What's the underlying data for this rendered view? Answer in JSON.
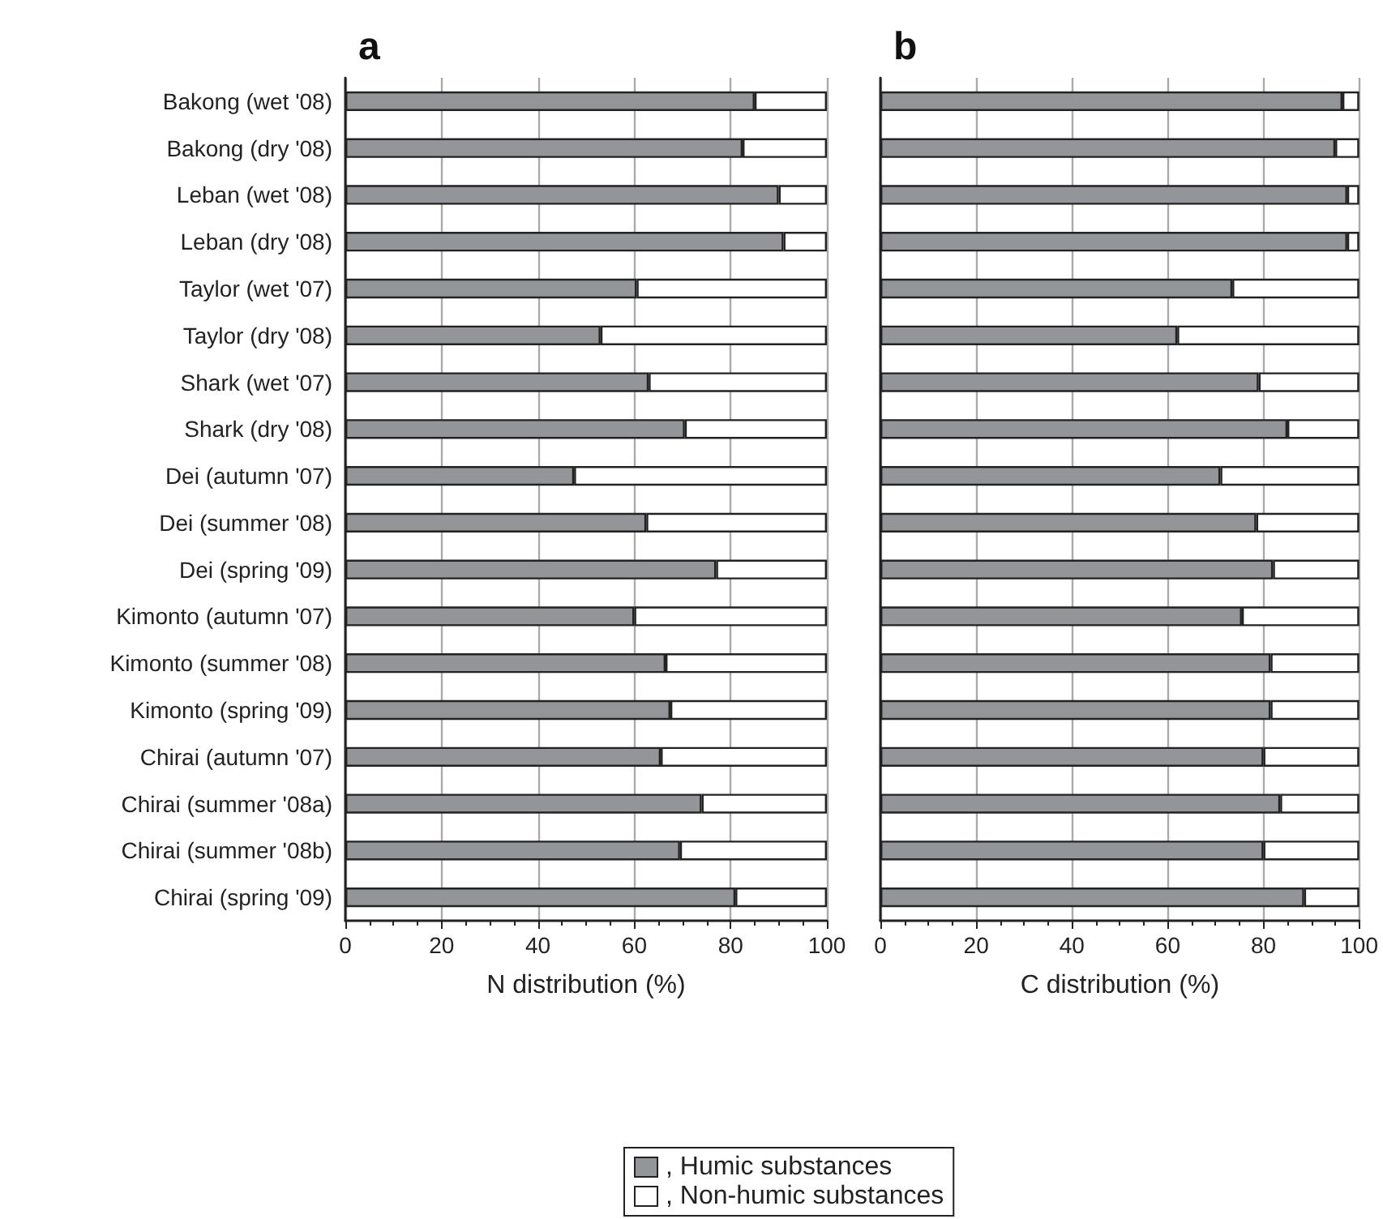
{
  "chart_data": [
    {
      "type": "bar",
      "title": "a",
      "orientation": "horizontal",
      "stacked": true,
      "xlabel": "N distribution (%)",
      "categories": [
        "Bakong (wet '08)",
        "Bakong (dry '08)",
        "Leban (wet '08)",
        "Leban (dry '08)",
        "Taylor (wet '07)",
        "Taylor (dry '08)",
        "Shark (wet '07)",
        "Shark (dry '08)",
        "Dei (autumn '07)",
        "Dei (summer '08)",
        "Dei (spring '09)",
        "Kimonto (autumn '07)",
        "Kimonto (summer '08)",
        "Kimonto (spring '09)",
        "Chirai (autumn '07)",
        "Chirai (summer '08a)",
        "Chirai (summer '08b)",
        "Chirai (spring '09)"
      ],
      "series": [
        {
          "name": ", Humic substances",
          "color": "#939598",
          "values": [
            85,
            82.5,
            90,
            91,
            60.5,
            53,
            63,
            70.5,
            47.5,
            62.5,
            77,
            60,
            66.5,
            67.5,
            65.5,
            74,
            69.5,
            81
          ]
        },
        {
          "name": ", Non-humic substances",
          "color": "#ffffff",
          "values": [
            15,
            17.5,
            10,
            9,
            39.5,
            47,
            37,
            29.5,
            52.5,
            37.5,
            23,
            40,
            33.5,
            32.5,
            34.5,
            26,
            30.5,
            19
          ]
        }
      ],
      "xlim": [
        0,
        100
      ],
      "xticks": [
        0,
        20,
        40,
        60,
        80,
        100
      ],
      "grid": "x",
      "legend": "bottom"
    },
    {
      "type": "bar",
      "title": "b",
      "orientation": "horizontal",
      "stacked": true,
      "xlabel": "C distribution (%)",
      "categories": [
        null,
        null,
        null,
        null,
        null,
        null,
        null,
        null,
        null,
        null,
        null,
        null,
        null,
        null,
        null,
        null,
        null,
        null
      ],
      "series": [
        {
          "color": "#939598",
          "values": [
            96.5,
            95,
            97.5,
            97.5,
            73.5,
            62,
            79,
            85,
            71,
            78.5,
            82,
            75.5,
            81.5,
            81.5,
            80,
            83.5,
            80,
            88.5
          ]
        },
        {
          "color": "#ffffff",
          "values": [
            3.5,
            5,
            2.5,
            2.5,
            26.5,
            38,
            21,
            15,
            29,
            21.5,
            18,
            24.5,
            18.5,
            18.5,
            20,
            16.5,
            20,
            11.5
          ]
        }
      ],
      "xlim": [
        0,
        100
      ],
      "xticks": [
        0,
        20,
        40,
        60,
        80,
        100
      ],
      "grid": "x",
      "tick_labels": "x"
    }
  ]
}
